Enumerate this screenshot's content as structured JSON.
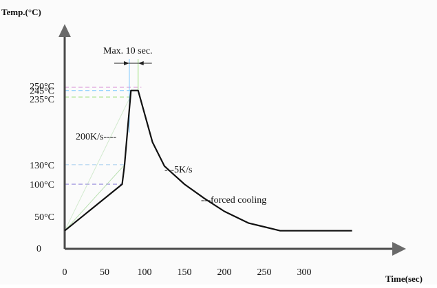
{
  "chart_data": {
    "type": "line",
    "title": "",
    "xlabel": "Time(sec)",
    "ylabel": "Temp.(°C)",
    "x_ticks": [
      {
        "value": 0,
        "label": "0"
      },
      {
        "value": 50,
        "label": "50"
      },
      {
        "value": 100,
        "label": "100"
      },
      {
        "value": 150,
        "label": "150"
      },
      {
        "value": 200,
        "label": "200"
      },
      {
        "value": 250,
        "label": "250"
      },
      {
        "value": 300,
        "label": "300"
      }
    ],
    "y_ticks": [
      {
        "value": 0,
        "label": "0"
      },
      {
        "value": 50,
        "label": "50°C"
      },
      {
        "value": 100,
        "label": "100°C"
      },
      {
        "value": 130,
        "label": "130°C"
      },
      {
        "value": 235,
        "label": "235°C"
      },
      {
        "value": 245,
        "label": "245°C"
      },
      {
        "value": 250,
        "label": "250°C"
      }
    ],
    "series": [
      {
        "values_x": [
          0,
          72,
          75,
          83,
          92,
          110,
          125,
          150,
          175,
          200,
          230,
          270,
          360
        ],
        "values_y": [
          28,
          100,
          130,
          245,
          245,
          165,
          128,
          100,
          78,
          58,
          40,
          28,
          28
        ]
      }
    ],
    "annotations": {
      "max_time": "Max. 10 sec.",
      "ramp_up": "200K/s----",
      "ramp_down": "---5K/s",
      "cooling": "---forced cooling"
    },
    "xlim": [
      0,
      410
    ],
    "ylim": [
      -20,
      290
    ],
    "grid": false,
    "colors": {
      "curve": "#111111",
      "axis": "#4a4a4a",
      "axis_arrow": "#6a6a6a",
      "guide_250": "#d78bd6",
      "guide_245": "#79c7ff",
      "guide_235": "#9be07a",
      "guide_130": "#a8cff0",
      "guide_100": "#7b6fd6",
      "guide_diag": "#b8dfb0"
    }
  }
}
